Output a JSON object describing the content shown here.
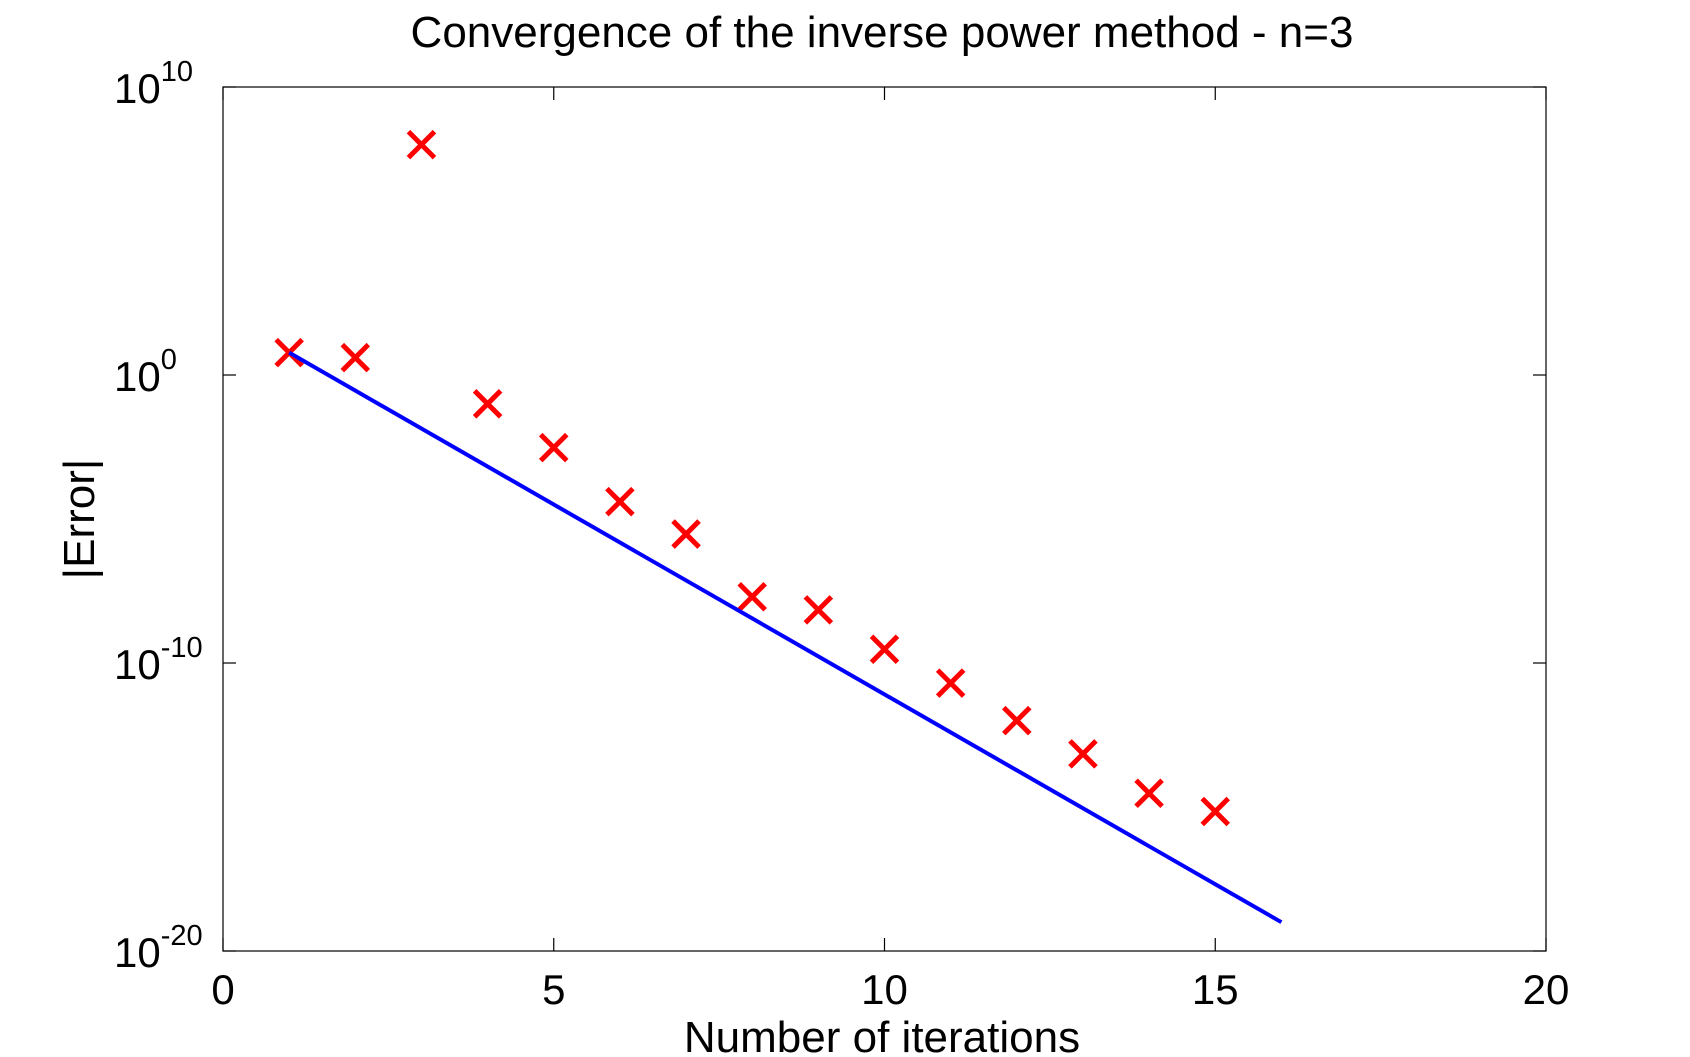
{
  "chart_data": {
    "type": "scatter",
    "title": "Convergence of the inverse power method - n=3",
    "xlabel": "Number of iterations",
    "ylabel": "|Error|",
    "xlim": [
      0,
      20
    ],
    "ylim": [
      1e-20,
      10000000000.0
    ],
    "yscale": "log",
    "grid": false,
    "x_ticks": [
      0,
      5,
      10,
      15,
      20
    ],
    "x_tick_labels": [
      "0",
      "5",
      "10",
      "15",
      "20"
    ],
    "y_ticks": [
      {
        "value": 1e-20,
        "base": "10",
        "exponent": "-20"
      },
      {
        "value": 1e-10,
        "base": "10",
        "exponent": "-10"
      },
      {
        "value": 1,
        "base": "10",
        "exponent": "0"
      },
      {
        "value": 10000000000.0,
        "base": "10",
        "exponent": "10"
      }
    ],
    "series": [
      {
        "marker": "x",
        "color": "#ff0000",
        "x": [
          1,
          2,
          3,
          4,
          5,
          6,
          7,
          8,
          9,
          10,
          11,
          12,
          13,
          14,
          15
        ],
        "y": [
          6.0,
          4.0,
          100000000.0,
          0.1,
          0.003,
          4e-05,
          3e-06,
          2e-08,
          7e-09,
          3e-10,
          2e-11,
          1e-12,
          7e-14,
          3e-15,
          7e-16
        ]
      },
      {
        "marker": "none",
        "line": "solid",
        "color": "#0000ff",
        "x": [
          1,
          16
        ],
        "y": [
          6.0,
          1e-19
        ]
      }
    ]
  }
}
